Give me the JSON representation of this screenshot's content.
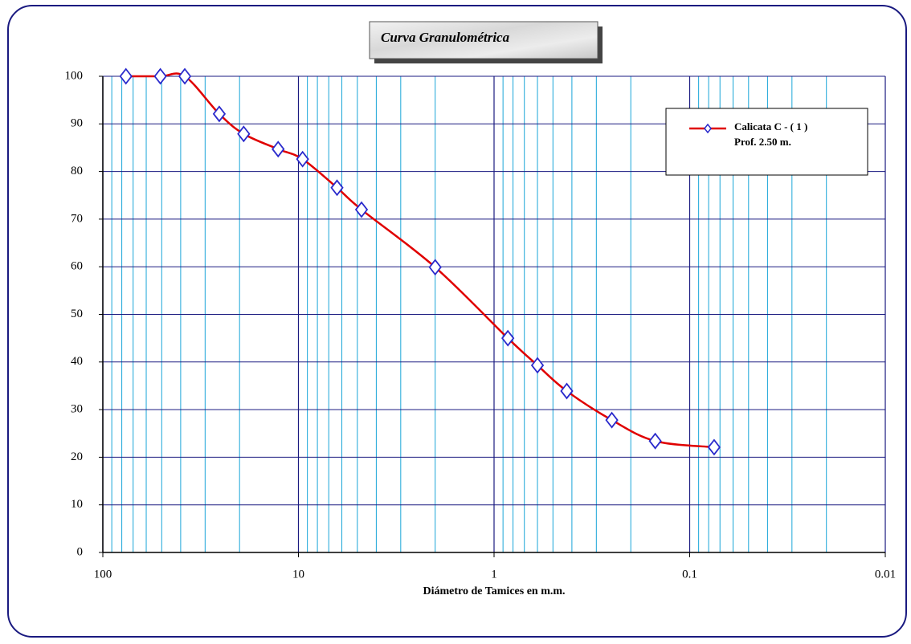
{
  "chart_data": {
    "type": "line",
    "title": "Curva Granulométrica",
    "xlabel": "Diámetro de Tamices en m.m.",
    "x": [
      76.2,
      50.8,
      38.1,
      25.4,
      19.05,
      12.7,
      9.525,
      6.35,
      4.76,
      2.0,
      0.85,
      0.6,
      0.425,
      0.25,
      0.15,
      0.075
    ],
    "series": [
      {
        "name": "Calicata C - ( 1 )",
        "color": "#e00000",
        "marker_color": "#2a2acc",
        "values": [
          100,
          100,
          100,
          92.1,
          87.9,
          84.7,
          82.6,
          76.6,
          72.0,
          59.9,
          45.0,
          39.3,
          33.9,
          27.8,
          23.4,
          22.1
        ]
      }
    ],
    "legend_note": "Prof. 2.50 m.",
    "xlim": [
      100,
      0.01
    ],
    "xticks": [
      100,
      10,
      1,
      0.1,
      0.01
    ],
    "xscale": "log",
    "ylim": [
      0,
      100
    ],
    "yticks": [
      100,
      90,
      80,
      70,
      60,
      50,
      40,
      30,
      20,
      10,
      0
    ],
    "grid": true,
    "legend": "upper right"
  }
}
